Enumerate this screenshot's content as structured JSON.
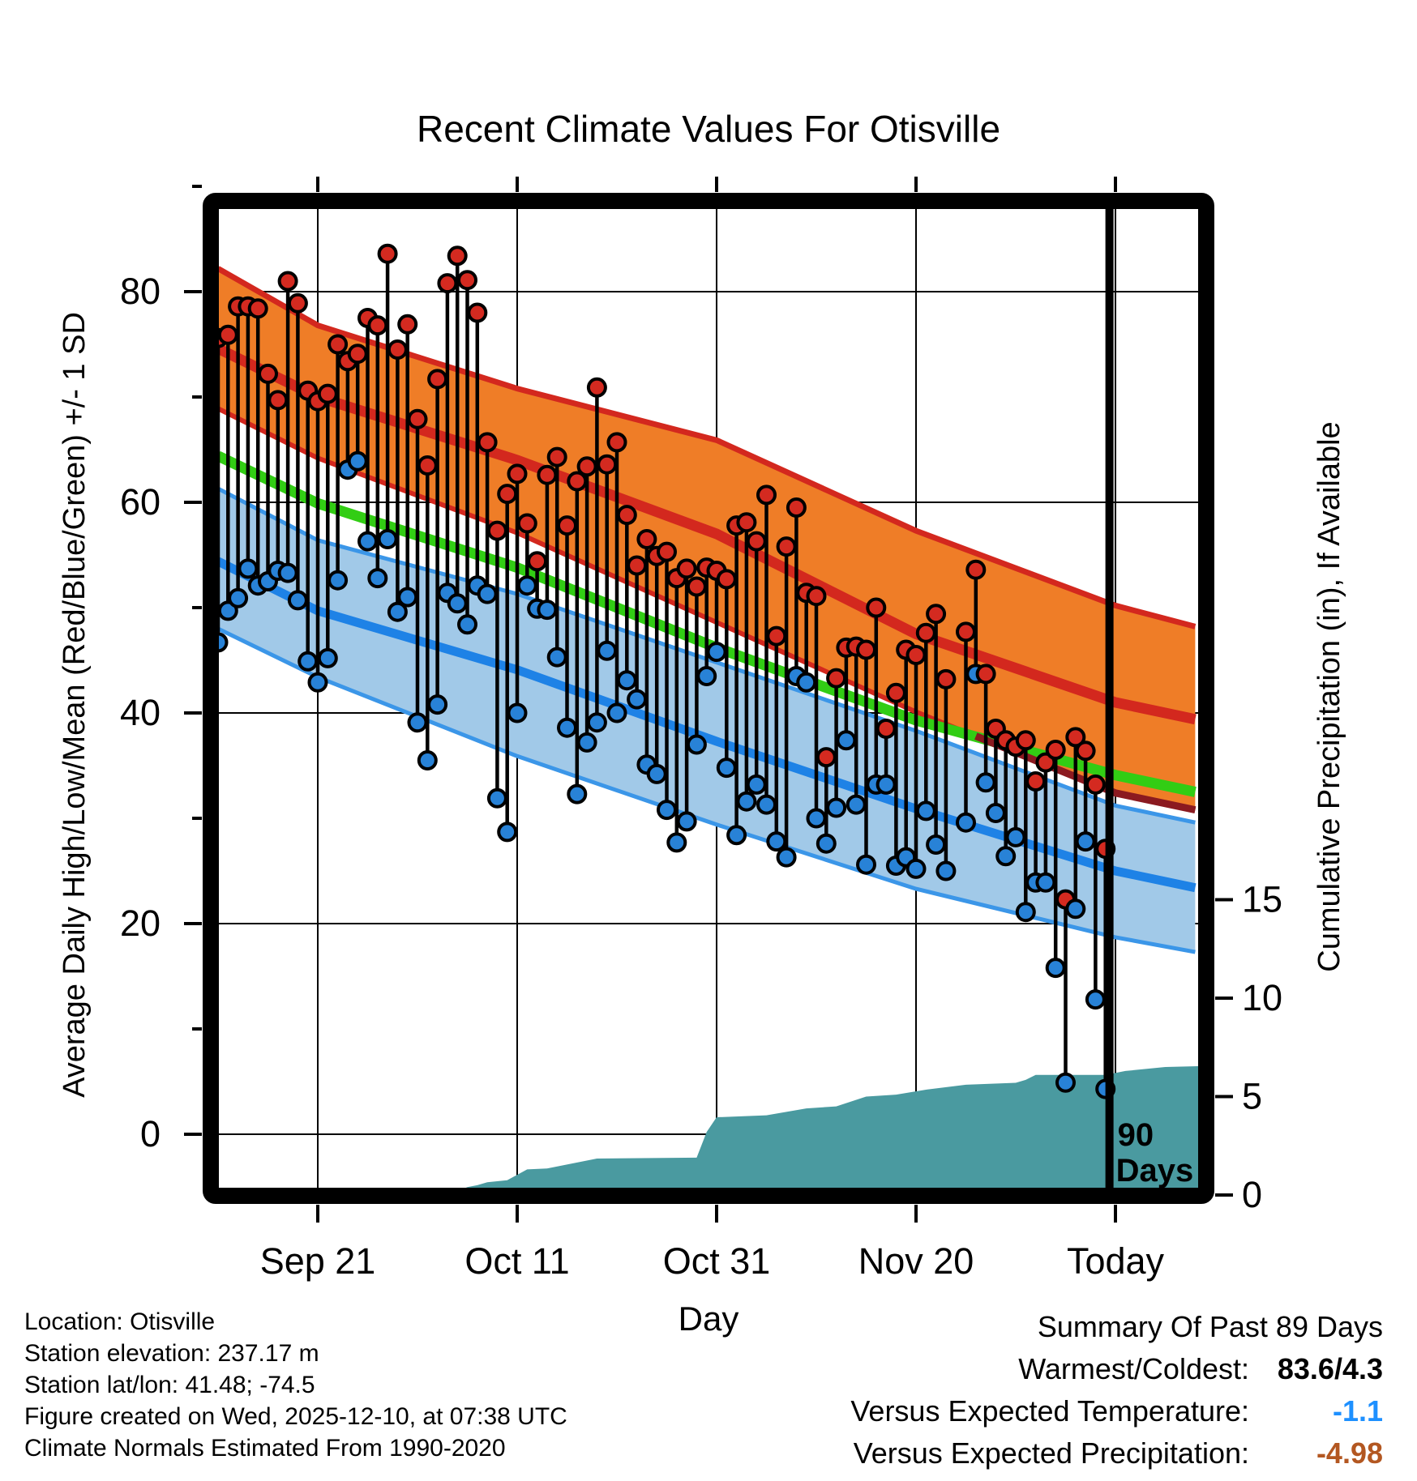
{
  "title": "Recent Climate Values For Otisville",
  "axes": {
    "left_label": "Average Daily High/Low/Mean (Red/Blue/Green) +/- 1 SD",
    "right_label": "Cumulative Precipitation (in), If Available",
    "x_label": "Day",
    "x_ticks": [
      {
        "label": "Sep 21",
        "day": 10
      },
      {
        "label": "Oct 11",
        "day": 30
      },
      {
        "label": "Oct 31",
        "day": 50
      },
      {
        "label": "Nov 20",
        "day": 70
      },
      {
        "label": "Today",
        "day": 90
      }
    ],
    "left_ticks": [
      0,
      20,
      40,
      60,
      80
    ],
    "left_minor_ticks": [
      10,
      30,
      50,
      70,
      90
    ],
    "right_ticks": [
      0,
      5,
      10,
      15
    ]
  },
  "colors": {
    "orange_band": "#EF7D27",
    "band_edge_red": "#D3281E",
    "high_mean_line": "#D3281E",
    "high_minus_sd_overlay": "#8B1A20",
    "mean_line": "#32CD14",
    "blue_band": "#A1C9E8",
    "band_edge_blue": "#3B96E8",
    "low_mean_line": "#1E82E6",
    "stem": "#000000",
    "dot_high": "#D42A20",
    "dot_low": "#2882D7",
    "precip_area": "#4A9AA0",
    "frame": "#000000",
    "gridline": "#000000",
    "temp_anomaly_value": "#1E90FF",
    "precip_anomaly_value": "#B35721"
  },
  "chart_data": {
    "type": "composite",
    "x_unit": "days since Sep 11 (2025), one stem per day",
    "temperature_axis_range": [
      -6,
      92
    ],
    "precip_axis_range": [
      0,
      18
    ],
    "daily": {
      "start_date": "Sep 11",
      "end_date": "Dec 9",
      "missing_date": "Nov 24",
      "high": [
        75.6,
        75.9,
        78.6,
        78.6,
        78.4,
        72.2,
        69.7,
        81.0,
        78.9,
        70.6,
        69.6,
        70.3,
        75.0,
        73.4,
        74.1,
        77.5,
        76.8,
        83.6,
        74.5,
        76.9,
        67.9,
        63.5,
        71.7,
        80.8,
        83.4,
        81.1,
        78.0,
        65.7,
        57.3,
        60.8,
        62.7,
        58.0,
        54.4,
        62.6,
        64.3,
        57.8,
        62.0,
        63.4,
        70.9,
        63.6,
        65.7,
        58.8,
        54.0,
        56.5,
        54.9,
        55.3,
        52.8,
        53.7,
        52.0,
        53.8,
        53.5,
        52.7,
        57.8,
        58.1,
        56.3,
        60.7,
        47.3,
        55.8,
        59.5,
        51.4,
        51.1,
        35.8,
        43.3,
        46.2,
        46.3,
        46.0,
        50.0,
        38.5,
        41.9,
        46.0,
        45.5,
        47.6,
        49.4,
        43.2,
        null,
        47.7,
        53.6,
        43.7,
        38.5,
        37.4,
        36.8,
        37.4,
        33.5,
        35.3,
        36.5,
        22.3,
        37.7,
        36.4,
        33.2,
        27.1
      ],
      "low": [
        46.7,
        49.7,
        50.9,
        53.7,
        52.1,
        52.5,
        53.5,
        53.3,
        50.7,
        44.9,
        42.9,
        45.2,
        52.6,
        63.1,
        63.9,
        56.3,
        52.8,
        56.5,
        49.6,
        51.0,
        39.1,
        35.5,
        40.8,
        51.4,
        50.4,
        48.4,
        52.1,
        51.3,
        31.9,
        28.7,
        40.0,
        52.1,
        49.9,
        49.8,
        45.3,
        38.6,
        32.3,
        37.2,
        39.1,
        45.9,
        40.0,
        43.1,
        41.3,
        35.1,
        34.2,
        30.8,
        27.7,
        29.7,
        37.0,
        43.5,
        45.8,
        34.8,
        28.4,
        31.6,
        33.2,
        31.3,
        27.8,
        26.3,
        43.5,
        42.9,
        30.0,
        27.6,
        31.0,
        37.4,
        31.3,
        25.6,
        33.2,
        33.2,
        25.5,
        26.3,
        25.2,
        30.7,
        27.5,
        25.0,
        null,
        29.6,
        43.7,
        33.4,
        30.5,
        26.4,
        28.2,
        21.1,
        23.9,
        23.9,
        15.8,
        4.9,
        21.4,
        27.8,
        12.8,
        4.3
      ]
    },
    "normals": {
      "sample_days": [
        0,
        10,
        30,
        50,
        70,
        90,
        98
      ],
      "sample_dates": [
        "Sep 11",
        "Sep 21",
        "Oct 11",
        "Oct 31",
        "Nov 20",
        "Dec 10",
        "Dec 18"
      ],
      "high_plus_sd": [
        82.2,
        76.8,
        70.8,
        65.9,
        57.3,
        50.2,
        48.2
      ],
      "high_mean": [
        74.6,
        70.0,
        64.0,
        57.0,
        47.5,
        41.0,
        39.4
      ],
      "high_minus_sd": [
        68.9,
        64.2,
        57.1,
        48.6,
        40.1,
        32.4,
        30.8
      ],
      "mean": [
        64.4,
        59.9,
        53.8,
        46.2,
        39.3,
        34.1,
        32.5
      ],
      "low_plus_sd": [
        61.3,
        56.4,
        51.3,
        44.8,
        38.3,
        31.2,
        29.6
      ],
      "low_mean": [
        54.4,
        49.7,
        44.1,
        37.3,
        30.9,
        25.0,
        23.4
      ],
      "low_minus_sd": [
        48.0,
        43.4,
        35.9,
        29.4,
        23.3,
        18.7,
        17.3
      ]
    },
    "precip_cumulative": {
      "days": [
        0,
        12,
        13,
        24,
        25,
        26,
        27,
        29,
        31,
        33,
        38,
        48,
        49,
        50,
        55,
        59,
        62,
        65,
        68,
        71,
        75,
        80,
        81,
        82,
        89,
        91,
        95,
        99
      ],
      "values": [
        0,
        0.05,
        0.15,
        0.2,
        0.4,
        0.5,
        0.65,
        0.75,
        1.3,
        1.35,
        1.85,
        1.9,
        3.2,
        3.95,
        4.05,
        4.4,
        4.5,
        5.0,
        5.1,
        5.35,
        5.6,
        5.7,
        5.85,
        6.1,
        6.1,
        6.3,
        6.5,
        6.55
      ]
    },
    "annotations": {
      "ninety_days_line_day": 89.4,
      "ninety_days_label_line1": "90",
      "ninety_days_label_line2": "Days"
    }
  },
  "footer_left": [
    "Location: Otisville",
    "Station elevation: 237.17 m",
    "Station lat/lon: 41.48; -74.5",
    "Figure created on Wed, 2025-12-10, at 07:38 UTC",
    "Climate Normals Estimated From 1990-2020"
  ],
  "summary": {
    "header": "Summary Of Past 89 Days",
    "rows": [
      {
        "label": "Warmest/Coldest:",
        "value": "83.6/4.3",
        "color": "#000000"
      },
      {
        "label": "Versus Expected Temperature:",
        "value": "-1.1",
        "color": "#1E90FF"
      },
      {
        "label": "Versus Expected Precipitation:",
        "value": "-4.98",
        "color": "#B35721"
      }
    ]
  }
}
